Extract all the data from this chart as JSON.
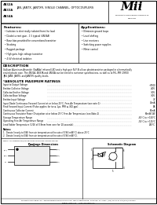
{
  "title_lines": [
    "4N32A",
    "4N33A",
    "4N34A"
  ],
  "subtitle": "JAN, JANTX, JANTXR, SINGLE CHANNEL, OPTOCOUPLERS",
  "company": "Mii",
  "company_tagline1": "MICROPAC ELECTRONIC PRODUCTS",
  "company_tagline2": "DIVISION",
  "features_title": "Features:",
  "features": [
    "Isolation is electrically isolated from the load",
    "Diode/current gain - 1.5 typical (4N34A)",
    "Base bias provided for conventional transistor",
    "Strobing",
    "Rugged package",
    "High gain, high voltage transistor",
    "4 kV electrical isolation"
  ],
  "applications_title": "Applications:",
  "applications": [
    "Eliminate ground loops",
    "Level shifting",
    "Line receivers",
    "Switching power supplies",
    "Motor control"
  ],
  "description_title": "DESCRIPTION",
  "description_lines": [
    "Gallium Aluminum Arsenide (GaAlAs) infrared LED and a high gain N-P-N silicon phototransistor packaged in a hermetically",
    "sealed plastic case. The 4N32A, 4N33A and 4N34A can be tested to customer specifications, as well as to MIL-PRF-19500",
    "JAN, JANS, JANTX, and JANTXV quality levels."
  ],
  "abs_max_title": "*ABSOLUTE MAXIMUM RATINGS",
  "abs_max_rows": [
    [
      "Input to Output Voltage",
      "+7500"
    ],
    [
      "Emitter-Collector Voltage",
      "-40V"
    ],
    [
      "Collector-Emitter Voltage",
      "-30V"
    ],
    [
      "Collector-Base Voltage",
      "-30V"
    ],
    [
      "Emitter-Input Voltage",
      "7V"
    ],
    [
      "Input Diode Continuous Forward Current at or below 25°C, Free-Air Temperature (see note 1)",
      "40mA"
    ],
    [
      "Peak Forward Input Current (Pulse-applies for tw ≤ 1μs, PRR ≤ 300 pps)",
      "5A"
    ],
    [
      "Continuous Collector Current",
      "60mA"
    ],
    [
      "Continuous Transistor Power Dissipation at or below 25°C Free-Air Temperature (see Note 2)",
      "90mW/1W"
    ],
    [
      "Storage Temperature Range",
      "-65°C to +150°C"
    ],
    [
      "Operating Free-Air Temperature Range",
      "-55°C to +125°C"
    ],
    [
      "Lead Solder Temperature (1/16 of 0.8mm from case for 10 seconds)",
      "260°C"
    ]
  ],
  "notes_title": "Notes:",
  "notes": [
    "1.  Derate linearly to 0(W) from air temperature at the rate of 0.96 (mW/°C) above 25°C.",
    "2.  Derate linearly to 0(W) from air temperature at the rate of 0.96 (mW/°C)."
  ],
  "diagram_label1": "Package Dimensions",
  "diagram_label2": "Schematic Diagram",
  "footer_line1": "MICROPAC INDUSTRIES, INC.  OPTOCOUPLERS PRODUCTS DIVISION  13851 SPECTRUM DR., GARLAND, TX  75000  (972) 277-1234  FAX (972) 000-0000",
  "footer_line2": "www.micropac.com     sales@micropac.com",
  "footer_line3": "D - 98",
  "bg_color": "#ffffff",
  "border_color": "#000000",
  "text_color": "#000000",
  "gray_bg": "#f5f5f5"
}
